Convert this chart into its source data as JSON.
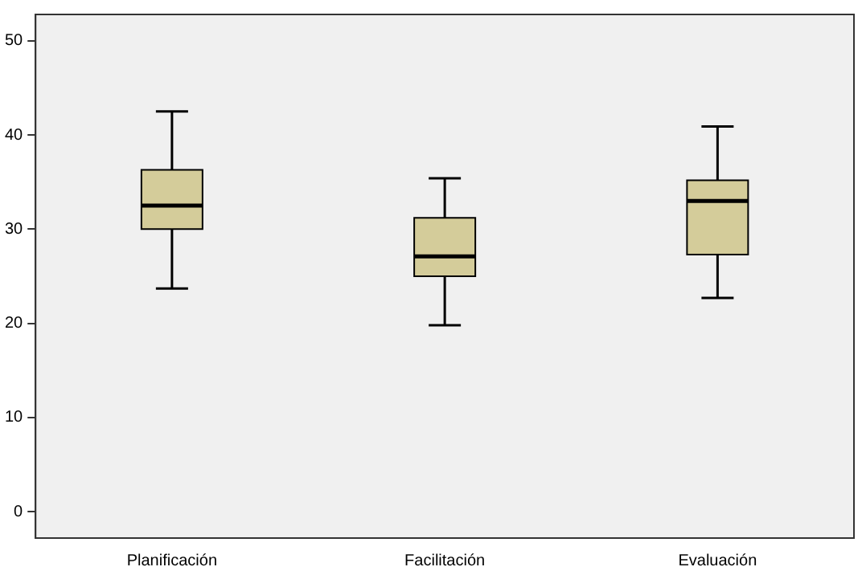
{
  "chart_data": {
    "type": "box",
    "categories": [
      "Planificación",
      "Facilitación",
      "Evaluación"
    ],
    "series": [
      {
        "color": "#d4cc9a",
        "boxes": [
          {
            "low": 23.7,
            "q1": 30.0,
            "median": 32.5,
            "q3": 36.3,
            "high": 42.5
          },
          {
            "low": 19.8,
            "q1": 25.0,
            "median": 27.1,
            "q3": 31.2,
            "high": 35.4
          },
          {
            "low": 22.7,
            "q1": 27.3,
            "median": 33.0,
            "q3": 35.2,
            "high": 40.9
          }
        ]
      }
    ],
    "ylim": [
      -2.8,
      52.8
    ],
    "yticks": [
      0,
      10,
      20,
      30,
      40,
      50
    ],
    "grid": false,
    "legend": false
  }
}
